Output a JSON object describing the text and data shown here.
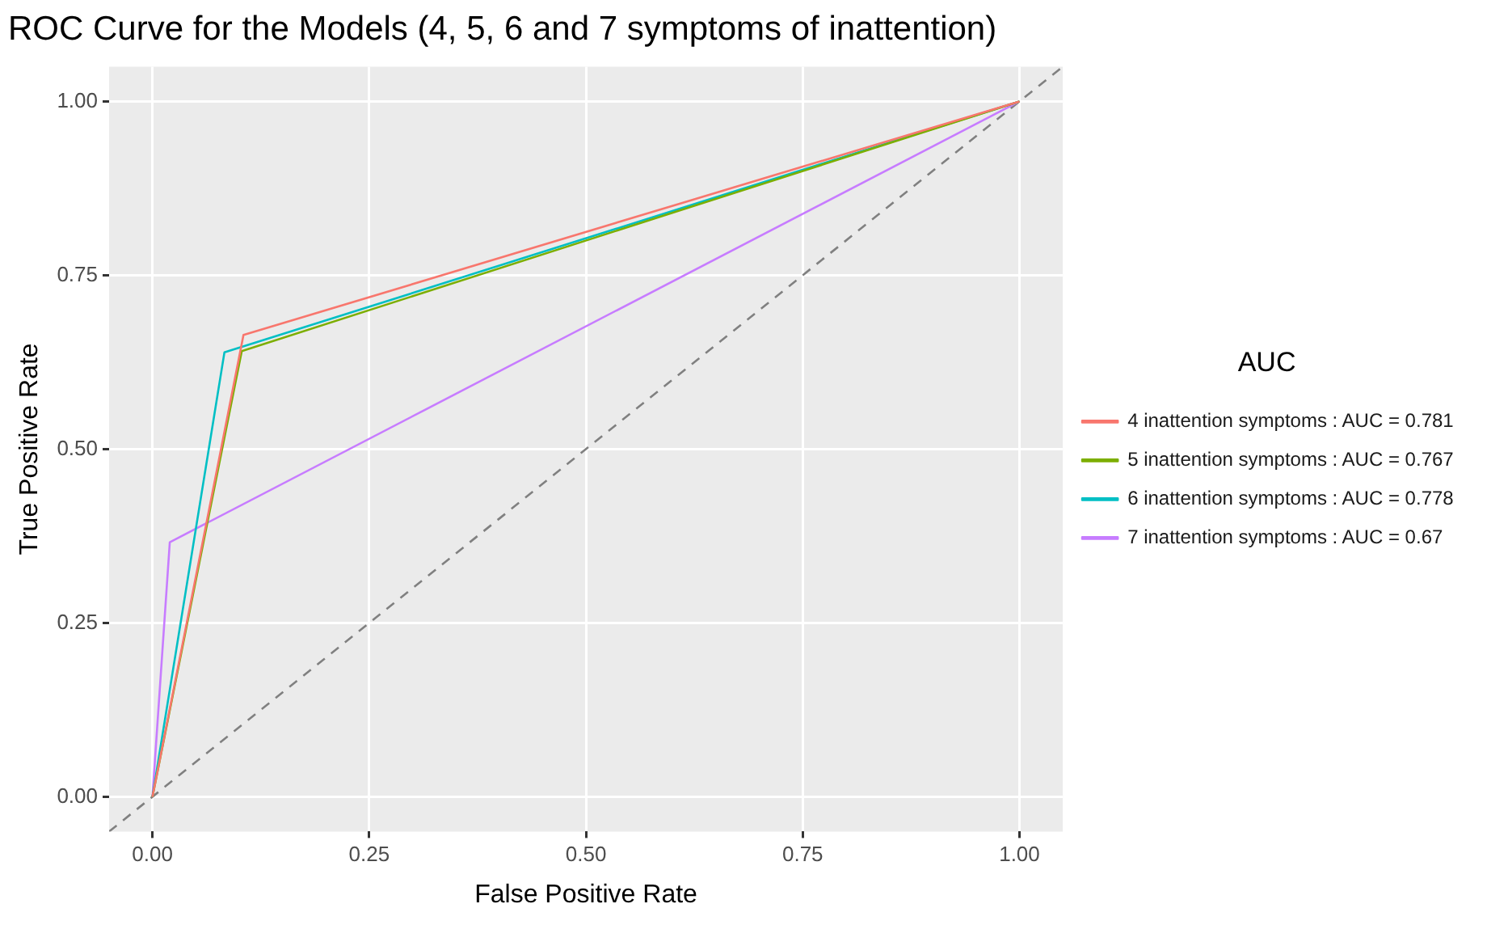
{
  "chart_data": {
    "type": "line",
    "title": "ROC Curve for the Models (4, 5, 6 and 7 symptoms of inattention)",
    "xlabel": "False Positive Rate",
    "ylabel": "True Positive Rate",
    "legend_title": "AUC",
    "series": [
      {
        "name": "4 inattention symptoms : AUC = 0.781",
        "color": "#f8766d",
        "x": [
          0,
          0.105,
          1
        ],
        "values": [
          0,
          0.664,
          1
        ]
      },
      {
        "name": "5 inattention symptoms : AUC = 0.767",
        "color": "#7cae00",
        "x": [
          0,
          0.103,
          1
        ],
        "values": [
          0,
          0.641,
          1
        ]
      },
      {
        "name": "6 inattention symptoms : AUC = 0.778",
        "color": "#00bfc4",
        "x": [
          0,
          0.083,
          1
        ],
        "values": [
          0,
          0.639,
          1
        ]
      },
      {
        "name": "7 inattention symptoms : AUC = 0.67",
        "color": "#c77cff",
        "x": [
          0,
          0.02,
          1
        ],
        "values": [
          0,
          0.366,
          1
        ]
      },
      {
        "color": "#808080",
        "line_style": "dashed",
        "x": [
          -0.05,
          1.05
        ],
        "values": [
          -0.05,
          1.05
        ]
      }
    ],
    "xlim": [
      -0.05,
      1.05
    ],
    "ylim": [
      -0.05,
      1.05
    ],
    "xticks": [
      {
        "value": 0,
        "label": "0.00"
      },
      {
        "value": 0.25,
        "label": "0.25"
      },
      {
        "value": 0.5,
        "label": "0.50"
      },
      {
        "value": 0.75,
        "label": "0.75"
      },
      {
        "value": 1,
        "label": "1.00"
      }
    ],
    "yticks": [
      {
        "value": 0,
        "label": "0.00"
      },
      {
        "value": 0.25,
        "label": "0.25"
      },
      {
        "value": 0.5,
        "label": "0.50"
      },
      {
        "value": 0.75,
        "label": "0.75"
      },
      {
        "value": 1,
        "label": "1.00"
      }
    ],
    "grid": true,
    "legend": "right",
    "marker": "none",
    "line_style": "solid"
  }
}
